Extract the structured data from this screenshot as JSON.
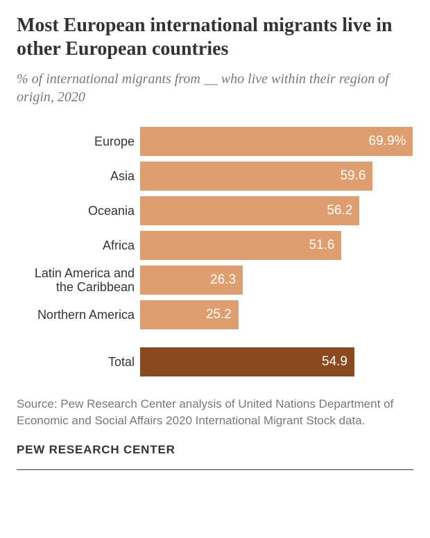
{
  "title": "Most European international migrants live in other European countries",
  "subtitle": "% of international migrants from __ who live within their region of origin, 2020",
  "chart": {
    "type": "bar",
    "max": 70,
    "bar_color": "#de9e6f",
    "total_color": "#8a4a1f",
    "value_text_color": "#ffffff",
    "label_color": "#333333",
    "title_fontsize": 28,
    "subtitle_fontsize": 20,
    "label_fontsize": 18,
    "value_fontsize": 19,
    "source_fontsize": 17,
    "logo_fontsize": 17,
    "background_color": "#ffffff",
    "rows": [
      {
        "label": "Europe",
        "value": 69.9,
        "display": "69.9%"
      },
      {
        "label": "Asia",
        "value": 59.6,
        "display": "59.6"
      },
      {
        "label": "Oceania",
        "value": 56.2,
        "display": "56.2"
      },
      {
        "label": "Africa",
        "value": 51.6,
        "display": "51.6"
      },
      {
        "label": "Latin America and the Caribbean",
        "value": 26.3,
        "display": "26.3"
      },
      {
        "label": "Northern America",
        "value": 25.2,
        "display": "25.2"
      }
    ],
    "total": {
      "label": "Total",
      "value": 54.9,
      "display": "54.9"
    }
  },
  "source": "Source: Pew Research Center analysis of United Nations Department of Economic and Social Affairs 2020 International Migrant Stock data.",
  "logo": "PEW RESEARCH CENTER"
}
